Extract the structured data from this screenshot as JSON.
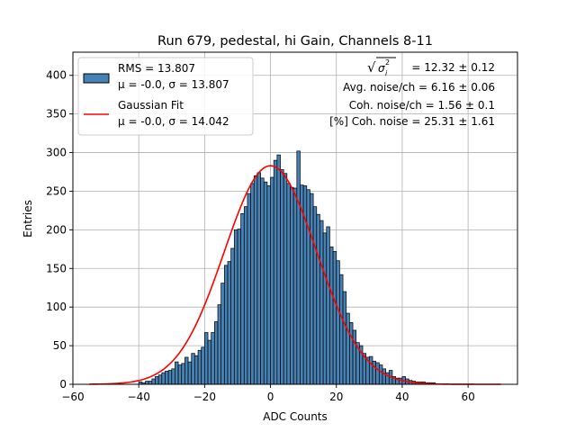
{
  "chart_data": {
    "type": "bar",
    "title": "Run 679, pedestal, hi Gain, Channels 8-11",
    "xlabel": "ADC Counts",
    "ylabel": "Entries",
    "xlim": [
      -60,
      75
    ],
    "ylim": [
      0,
      430
    ],
    "xticks": [
      -60,
      -40,
      -20,
      0,
      20,
      40,
      60
    ],
    "yticks": [
      0,
      50,
      100,
      150,
      200,
      250,
      300,
      350,
      400
    ],
    "grid": true,
    "legend_placement": "top-left",
    "bin_width": 1,
    "bin_start": -40,
    "bar_color": "#4682b4",
    "fit_color": "#ff0000",
    "histogram_values": [
      3,
      2,
      4,
      4,
      7,
      10,
      12,
      15,
      17,
      18,
      20,
      29,
      25,
      27,
      35,
      29,
      40,
      37,
      44,
      48,
      67,
      57,
      67,
      81,
      103,
      131,
      154,
      159,
      176,
      200,
      201,
      221,
      230,
      247,
      260,
      270,
      274,
      267,
      262,
      257,
      268,
      290,
      297,
      278,
      273,
      260,
      255,
      254,
      302,
      258,
      257,
      252,
      247,
      230,
      220,
      212,
      196,
      204,
      178,
      172,
      160,
      142,
      120,
      92,
      80,
      70,
      54,
      50,
      40,
      35,
      36,
      30,
      28,
      25,
      20,
      15,
      18,
      10,
      8,
      8,
      10,
      7,
      5,
      4,
      3,
      3,
      3,
      2,
      2,
      2
    ],
    "series": [
      {
        "name": "RMS = 13.807\nμ = -0.0, σ = 13.807",
        "legend_lines": [
          "RMS = 13.807",
          "μ = -0.0, σ = 13.807"
        ],
        "kind": "histogram",
        "rms": 13.807,
        "mu": -0.0,
        "sigma": 13.807
      },
      {
        "name": "Gaussian Fit\nμ = -0.0, σ = 14.042",
        "legend_lines": [
          "Gaussian Fit",
          "μ = -0.0, σ = 14.042"
        ],
        "kind": "line",
        "mu": -0.0,
        "sigma": 14.042,
        "amplitude": 283,
        "x_range": [
          -55,
          70
        ]
      }
    ],
    "annotations": [
      {
        "prefix": "√",
        "sigma_sym": "σ",
        "sub": "i",
        "sup": "2",
        "text": " = 12.32 ± 0.12"
      },
      {
        "text": "Avg. noise/ch = 6.16 ± 0.06"
      },
      {
        "text": "Coh. noise/ch = 1.56 ± 0.1"
      },
      {
        "text": "[%] Coh. noise = 25.31 ± 1.61"
      }
    ]
  }
}
